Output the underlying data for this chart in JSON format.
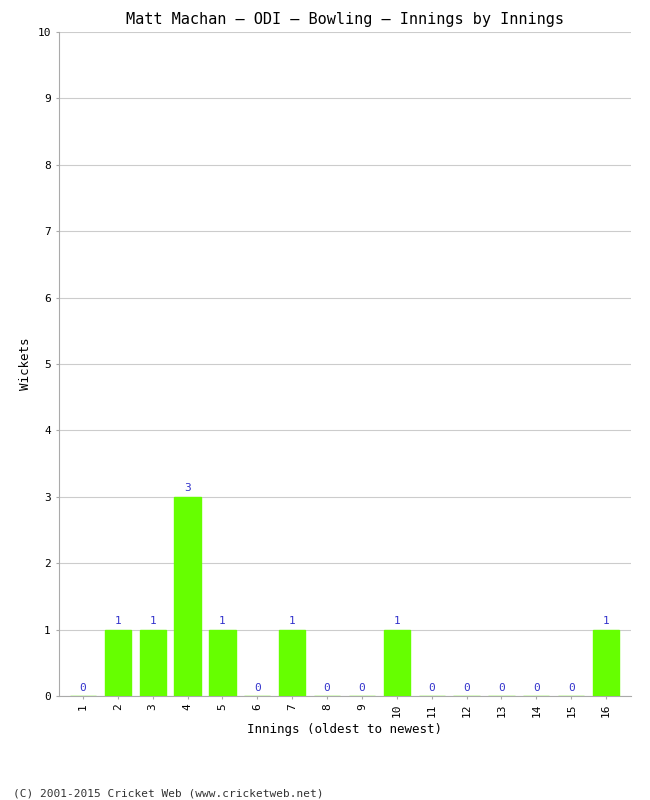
{
  "title": "Matt Machan – ODI – Bowling – Innings by Innings",
  "xlabel": "Innings (oldest to newest)",
  "ylabel": "Wickets",
  "innings": [
    1,
    2,
    3,
    4,
    5,
    6,
    7,
    8,
    9,
    10,
    11,
    12,
    13,
    14,
    15,
    16
  ],
  "wickets": [
    0,
    1,
    1,
    3,
    1,
    0,
    1,
    0,
    0,
    1,
    0,
    0,
    0,
    0,
    0,
    1
  ],
  "bar_color": "#66ff00",
  "bar_edge_color": "#66ff00",
  "label_color": "#3333cc",
  "ylim": [
    0,
    10
  ],
  "yticks": [
    0,
    1,
    2,
    3,
    4,
    5,
    6,
    7,
    8,
    9,
    10
  ],
  "background_color": "#ffffff",
  "grid_color": "#cccccc",
  "title_fontsize": 11,
  "axis_label_fontsize": 9,
  "tick_fontsize": 8,
  "annotation_fontsize": 8,
  "footer": "(C) 2001-2015 Cricket Web (www.cricketweb.net)",
  "footer_fontsize": 8
}
